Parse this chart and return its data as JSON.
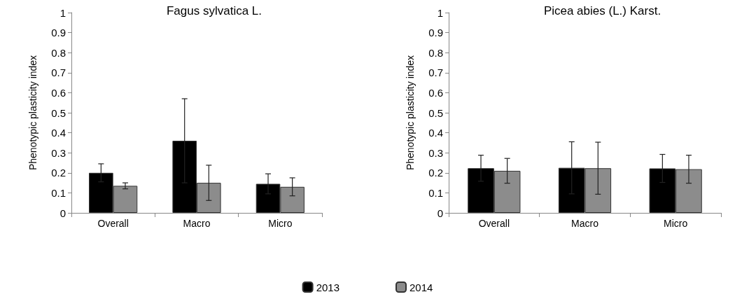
{
  "chart_data": [
    {
      "type": "bar",
      "title": "Fagus sylvatica L.",
      "ylabel": "Phenotypic plasticity index",
      "categories": [
        "Overall",
        "Macro",
        "Micro"
      ],
      "series": [
        {
          "name": "2013",
          "color": "#000000",
          "values": [
            0.2,
            0.36,
            0.145
          ],
          "errors": [
            0.045,
            0.21,
            0.05
          ]
        },
        {
          "name": "2014",
          "color": "#8c8c8c",
          "values": [
            0.135,
            0.15,
            0.13
          ],
          "errors": [
            0.015,
            0.088,
            0.045
          ]
        }
      ],
      "ylim": [
        0,
        1
      ],
      "yticks": [
        0,
        0.1,
        0.2,
        0.3,
        0.4,
        0.5,
        0.6,
        0.7,
        0.8,
        0.9,
        1
      ],
      "grid": false,
      "legend": "bottom"
    },
    {
      "type": "bar",
      "title": "Picea abies (L.) Karst.",
      "ylabel": "Phenotypic plasticity index",
      "categories": [
        "Overall",
        "Macro",
        "Micro"
      ],
      "series": [
        {
          "name": "2013",
          "color": "#000000",
          "values": [
            0.223,
            0.225,
            0.222
          ],
          "errors": [
            0.065,
            0.13,
            0.07
          ]
        },
        {
          "name": "2014",
          "color": "#8c8c8c",
          "values": [
            0.21,
            0.223,
            0.218
          ],
          "errors": [
            0.062,
            0.13,
            0.07
          ]
        }
      ],
      "ylim": [
        0,
        1
      ],
      "yticks": [
        0,
        0.1,
        0.2,
        0.3,
        0.4,
        0.5,
        0.6,
        0.7,
        0.8,
        0.9,
        1
      ],
      "grid": false,
      "legend": "bottom"
    }
  ]
}
